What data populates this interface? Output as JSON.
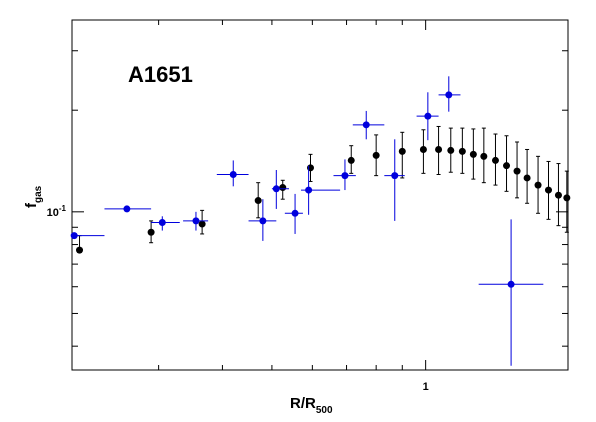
{
  "chart_data": {
    "type": "scatter",
    "title": "A1651",
    "xlabel": {
      "main": "R/R",
      "sub": "500"
    },
    "ylabel": {
      "main": "f",
      "sub": "gas"
    },
    "x_scale": "log",
    "y_scale": "log",
    "xlim": [
      0.203,
      1.9
    ],
    "ylim": [
      0.034,
      0.37
    ],
    "grid": false,
    "legend": "none",
    "x_tick_labels": [
      {
        "value": 1,
        "label": "1"
      }
    ],
    "y_tick_labels": [
      {
        "value": 0.1,
        "label": "10",
        "exponent": "-1"
      }
    ],
    "series": [
      {
        "color": "#000000",
        "points": [
          {
            "x": 0.21,
            "y": 0.077,
            "xerr": [
              0.0,
              0.0
            ],
            "yerr": [
              0.077,
              0.085
            ]
          },
          {
            "x": 0.29,
            "y": 0.087,
            "xerr": [
              0.0,
              0.0
            ],
            "yerr": [
              0.081,
              0.094
            ]
          },
          {
            "x": 0.365,
            "y": 0.092,
            "xerr": [
              0.0,
              0.0
            ],
            "yerr": [
              0.086,
              0.101
            ]
          },
          {
            "x": 0.47,
            "y": 0.108,
            "xerr": [
              0.0,
              0.0
            ],
            "yerr": [
              0.096,
              0.122
            ]
          },
          {
            "x": 0.525,
            "y": 0.118,
            "xerr": [
              0.0,
              0.0
            ],
            "yerr": [
              0.109,
              0.124
            ]
          },
          {
            "x": 0.595,
            "y": 0.135,
            "xerr": [
              0.0,
              0.0
            ],
            "yerr": [
              0.123,
              0.148
            ]
          },
          {
            "x": 0.715,
            "y": 0.142,
            "xerr": [
              0.0,
              0.0
            ],
            "yerr": [
              0.13,
              0.157
            ]
          },
          {
            "x": 0.8,
            "y": 0.147,
            "xerr": [
              0.0,
              0.0
            ],
            "yerr": [
              0.128,
              0.169
            ]
          },
          {
            "x": 0.9,
            "y": 0.151,
            "xerr": [
              0.0,
              0.0
            ],
            "yerr": [
              0.126,
              0.172
            ]
          },
          {
            "x": 0.99,
            "y": 0.153,
            "xerr": [
              0.0,
              0.0
            ],
            "yerr": [
              0.13,
              0.175
            ]
          },
          {
            "x": 1.06,
            "y": 0.153,
            "xerr": [
              0.0,
              0.0
            ],
            "yerr": [
              0.129,
              0.179
            ]
          },
          {
            "x": 1.12,
            "y": 0.152,
            "xerr": [
              0.0,
              0.0
            ],
            "yerr": [
              0.131,
              0.177
            ]
          },
          {
            "x": 1.18,
            "y": 0.151,
            "xerr": [
              0.0,
              0.0
            ],
            "yerr": [
              0.13,
              0.177
            ]
          },
          {
            "x": 1.24,
            "y": 0.148,
            "xerr": [
              0.0,
              0.0
            ],
            "yerr": [
              0.125,
              0.176
            ]
          },
          {
            "x": 1.3,
            "y": 0.146,
            "xerr": [
              0.0,
              0.0
            ],
            "yerr": [
              0.122,
              0.177
            ]
          },
          {
            "x": 1.37,
            "y": 0.142,
            "xerr": [
              0.0,
              0.0
            ],
            "yerr": [
              0.12,
              0.17
            ]
          },
          {
            "x": 1.44,
            "y": 0.137,
            "xerr": [
              0.0,
              0.0
            ],
            "yerr": [
              0.115,
              0.168
            ]
          },
          {
            "x": 1.51,
            "y": 0.132,
            "xerr": [
              0.0,
              0.0
            ],
            "yerr": [
              0.11,
              0.161
            ]
          },
          {
            "x": 1.58,
            "y": 0.126,
            "xerr": [
              0.0,
              0.0
            ],
            "yerr": [
              0.106,
              0.153
            ]
          },
          {
            "x": 1.66,
            "y": 0.12,
            "xerr": [
              0.0,
              0.0
            ],
            "yerr": [
              0.099,
              0.146
            ]
          },
          {
            "x": 1.74,
            "y": 0.116,
            "xerr": [
              0.0,
              0.0
            ],
            "yerr": [
              0.095,
              0.141
            ]
          },
          {
            "x": 1.82,
            "y": 0.112,
            "xerr": [
              0.0,
              0.0
            ],
            "yerr": [
              0.091,
              0.139
            ]
          },
          {
            "x": 1.89,
            "y": 0.11,
            "xerr": [
              0.0,
              0.0
            ],
            "yerr": [
              0.087,
              0.132
            ]
          }
        ]
      },
      {
        "color": "#0000dd",
        "points": [
          {
            "x": 0.205,
            "y": 0.085,
            "xerr": [
              0.203,
              0.235
            ],
            "yerr": [
              0.085,
              0.085
            ]
          },
          {
            "x": 0.26,
            "y": 0.102,
            "xerr": [
              0.235,
              0.29
            ],
            "yerr": [
              0.1,
              0.104
            ]
          },
          {
            "x": 0.305,
            "y": 0.093,
            "xerr": [
              0.29,
              0.33
            ],
            "yerr": [
              0.088,
              0.097
            ]
          },
          {
            "x": 0.355,
            "y": 0.094,
            "xerr": [
              0.335,
              0.375
            ],
            "yerr": [
              0.088,
              0.1
            ]
          },
          {
            "x": 0.42,
            "y": 0.129,
            "xerr": [
              0.39,
              0.45
            ],
            "yerr": [
              0.119,
              0.142
            ]
          },
          {
            "x": 0.48,
            "y": 0.094,
            "xerr": [
              0.45,
              0.51
            ],
            "yerr": [
              0.082,
              0.109
            ]
          },
          {
            "x": 0.51,
            "y": 0.117,
            "xerr": [
              0.5,
              0.54
            ],
            "yerr": [
              0.102,
              0.133
            ]
          },
          {
            "x": 0.555,
            "y": 0.099,
            "xerr": [
              0.53,
              0.575
            ],
            "yerr": [
              0.086,
              0.113
            ]
          },
          {
            "x": 0.59,
            "y": 0.116,
            "xerr": [
              0.57,
              0.68
            ],
            "yerr": [
              0.098,
              0.137
            ]
          },
          {
            "x": 0.695,
            "y": 0.128,
            "xerr": [
              0.66,
              0.73
            ],
            "yerr": [
              0.116,
              0.143
            ]
          },
          {
            "x": 0.765,
            "y": 0.181,
            "xerr": [
              0.72,
              0.83
            ],
            "yerr": [
              0.164,
              0.199
            ]
          },
          {
            "x": 0.87,
            "y": 0.128,
            "xerr": [
              0.83,
              0.91
            ],
            "yerr": [
              0.094,
              0.164
            ]
          },
          {
            "x": 1.01,
            "y": 0.192,
            "xerr": [
              0.96,
              1.06
            ],
            "yerr": [
              0.163,
              0.226
            ]
          },
          {
            "x": 1.11,
            "y": 0.222,
            "xerr": [
              1.06,
              1.17
            ],
            "yerr": [
              0.198,
              0.252
            ]
          },
          {
            "x": 1.47,
            "y": 0.061,
            "xerr": [
              1.27,
              1.7
            ],
            "yerr": [
              0.035,
              0.095
            ]
          }
        ]
      }
    ]
  }
}
